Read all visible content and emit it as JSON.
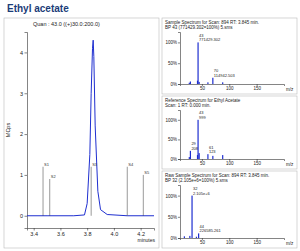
{
  "title": "Ethyl acetate",
  "chart_data": [
    {
      "type": "line",
      "title": "Quan : 43.0 ((+)30.0:200.0)",
      "x_label": "minutes",
      "y_label": "MCps",
      "x": [
        3.35,
        3.5,
        3.7,
        3.78,
        3.8,
        3.82,
        3.83,
        3.84,
        3.845,
        3.85,
        3.86,
        3.88,
        3.9,
        3.95,
        4.1,
        4.3
      ],
      "values": [
        0,
        0,
        0,
        0.02,
        0.3,
        1.5,
        3.0,
        4.1,
        4.3,
        3.9,
        2.2,
        0.6,
        0.15,
        0.03,
        0,
        0
      ],
      "color": "#1f2fd0",
      "xlim": [
        3.35,
        4.3
      ],
      "xticks": [
        3.4,
        3.6,
        3.8,
        {
          "value": 4,
          "label": "4.0"
        },
        4.2
      ],
      "ylim": [
        -0.3,
        4.5
      ],
      "yticks": [
        0,
        1,
        2,
        3,
        4
      ],
      "markers": [
        {
          "label": "S1",
          "x": 3.47,
          "y": 1.2
        },
        {
          "label": "S2",
          "x": 3.52,
          "y": 0.9
        },
        {
          "label": "S3",
          "x": 3.83,
          "y": 1.2
        },
        {
          "label": "S4",
          "x": 4.1,
          "y": 1.2
        },
        {
          "label": "S5",
          "x": 4.22,
          "y": 1.0
        }
      ]
    },
    {
      "type": "bar",
      "title": "Sample Spectrum for Scan: 894 RT: 3.845 min.",
      "subtitle": "BP 43 (771429.302=100%) 5.sms",
      "x_label": "m/z",
      "x": [
        27,
        29,
        42,
        43,
        45,
        61,
        70,
        88
      ],
      "values": [
        3,
        6,
        8,
        100,
        5,
        4,
        15,
        4
      ],
      "color": "#1f2fd0",
      "xlim": [
        10,
        200
      ],
      "xticks": [
        50,
        100,
        150
      ],
      "ylim": [
        0,
        125
      ],
      "yticks": [
        {
          "value": 0,
          "label": "0%"
        },
        {
          "value": 50,
          "label": "50%"
        },
        {
          "value": 100,
          "label": "100%"
        }
      ],
      "annotations": [
        {
          "x": 43,
          "y": 100,
          "lines": [
            "43",
            "771429.302"
          ]
        },
        {
          "x": 70,
          "y": 15,
          "lines": [
            "70",
            "114942.503"
          ]
        }
      ]
    },
    {
      "type": "bar",
      "title": "Reference Spectrum for Ethyl Acetate",
      "subtitle": "Scan: 1 RT: 0.000 min.",
      "x_label": "m/z",
      "x": [
        27,
        29,
        42,
        43,
        45,
        61,
        70,
        88
      ],
      "values": [
        5,
        20.8,
        10,
        100,
        15,
        12.3,
        8,
        10
      ],
      "color": "#1f2fd0",
      "xlim": [
        10,
        200
      ],
      "xticks": [
        50,
        100,
        150
      ],
      "ylim": [
        0,
        125
      ],
      "yticks": [
        {
          "value": 0,
          "label": "0%"
        },
        {
          "value": 50,
          "label": "50%"
        },
        {
          "value": 100,
          "label": "100%"
        }
      ],
      "annotations": [
        {
          "x": 43,
          "y": 100,
          "lines": [
            "43",
            "999"
          ]
        },
        {
          "x": 29,
          "y": 20.8,
          "lines": [
            "29",
            "208"
          ]
        },
        {
          "x": 61,
          "y": 12.3,
          "lines": [
            "61",
            "123"
          ]
        }
      ]
    },
    {
      "type": "bar",
      "title": "Raw Sample Spectrum for Scan: 894 RT: 3.845 min.",
      "subtitle": "BP 32 (2.105e+6=100%) 5.sms",
      "x_label": "m/z",
      "x": [
        18,
        28,
        32,
        40,
        44
      ],
      "values": [
        4,
        5,
        100,
        3,
        10.8
      ],
      "color": "#1f2fd0",
      "xlim": [
        10,
        200
      ],
      "xticks": [
        50,
        100,
        150
      ],
      "ylim": [
        0,
        125
      ],
      "yticks": [
        {
          "value": 0,
          "label": "0%"
        },
        {
          "value": 50,
          "label": "50%"
        },
        {
          "value": 100,
          "label": "100%"
        }
      ],
      "annotations": [
        {
          "x": 32,
          "y": 100,
          "lines": [
            "32",
            "2.105e+6"
          ]
        },
        {
          "x": 44,
          "y": 10.8,
          "lines": [
            "44",
            "226585.261"
          ]
        }
      ]
    }
  ]
}
